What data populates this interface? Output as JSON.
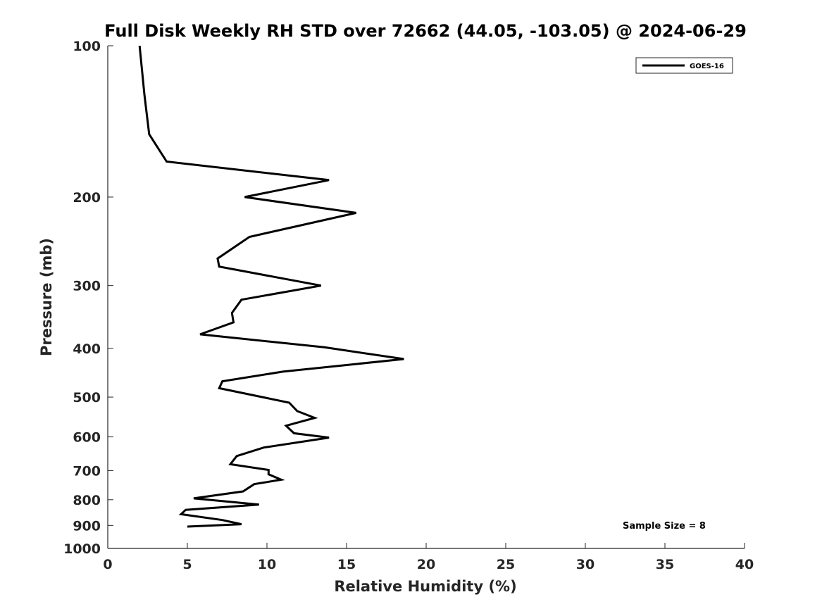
{
  "chart_data": {
    "type": "line",
    "title": "Full Disk Weekly RH STD over 72662 (44.05, -103.05) @ 2024-06-29",
    "xlabel": "Relative Humidity (%)",
    "ylabel": "Pressure (mb)",
    "xlim": [
      0,
      40
    ],
    "ylim": [
      100,
      1000
    ],
    "y_scale": "log",
    "y_reversed": true,
    "x_ticks": [
      0,
      5,
      10,
      15,
      20,
      25,
      30,
      35,
      40
    ],
    "y_ticks": [
      100,
      200,
      300,
      400,
      500,
      600,
      700,
      800,
      900,
      1000
    ],
    "grid": false,
    "legend_position": "top-right",
    "annotation": "Sample Size = 8",
    "series": [
      {
        "name": "GOES-16",
        "color": "#000000",
        "points": [
          [
            2.0,
            100
          ],
          [
            2.3,
            125
          ],
          [
            2.6,
            150
          ],
          [
            3.7,
            170
          ],
          [
            13.9,
            185
          ],
          [
            8.6,
            200
          ],
          [
            15.6,
            215
          ],
          [
            8.9,
            240
          ],
          [
            6.9,
            265
          ],
          [
            7.0,
            275
          ],
          [
            13.4,
            300
          ],
          [
            8.4,
            320
          ],
          [
            7.8,
            340
          ],
          [
            7.9,
            355
          ],
          [
            5.8,
            375
          ],
          [
            13.6,
            398
          ],
          [
            18.6,
            420
          ],
          [
            11.0,
            445
          ],
          [
            7.2,
            465
          ],
          [
            7.0,
            480
          ],
          [
            11.4,
            513
          ],
          [
            11.9,
            533
          ],
          [
            13.0,
            550
          ],
          [
            11.2,
            570
          ],
          [
            11.7,
            590
          ],
          [
            13.9,
            602
          ],
          [
            9.8,
            630
          ],
          [
            8.1,
            655
          ],
          [
            7.7,
            680
          ],
          [
            10.1,
            698
          ],
          [
            10.1,
            712
          ],
          [
            10.9,
            730
          ],
          [
            9.2,
            745
          ],
          [
            8.5,
            770
          ],
          [
            5.4,
            795
          ],
          [
            9.5,
            818
          ],
          [
            4.9,
            838
          ],
          [
            4.6,
            855
          ],
          [
            7.2,
            878
          ],
          [
            8.4,
            895
          ],
          [
            5.0,
            905
          ]
        ]
      }
    ]
  }
}
